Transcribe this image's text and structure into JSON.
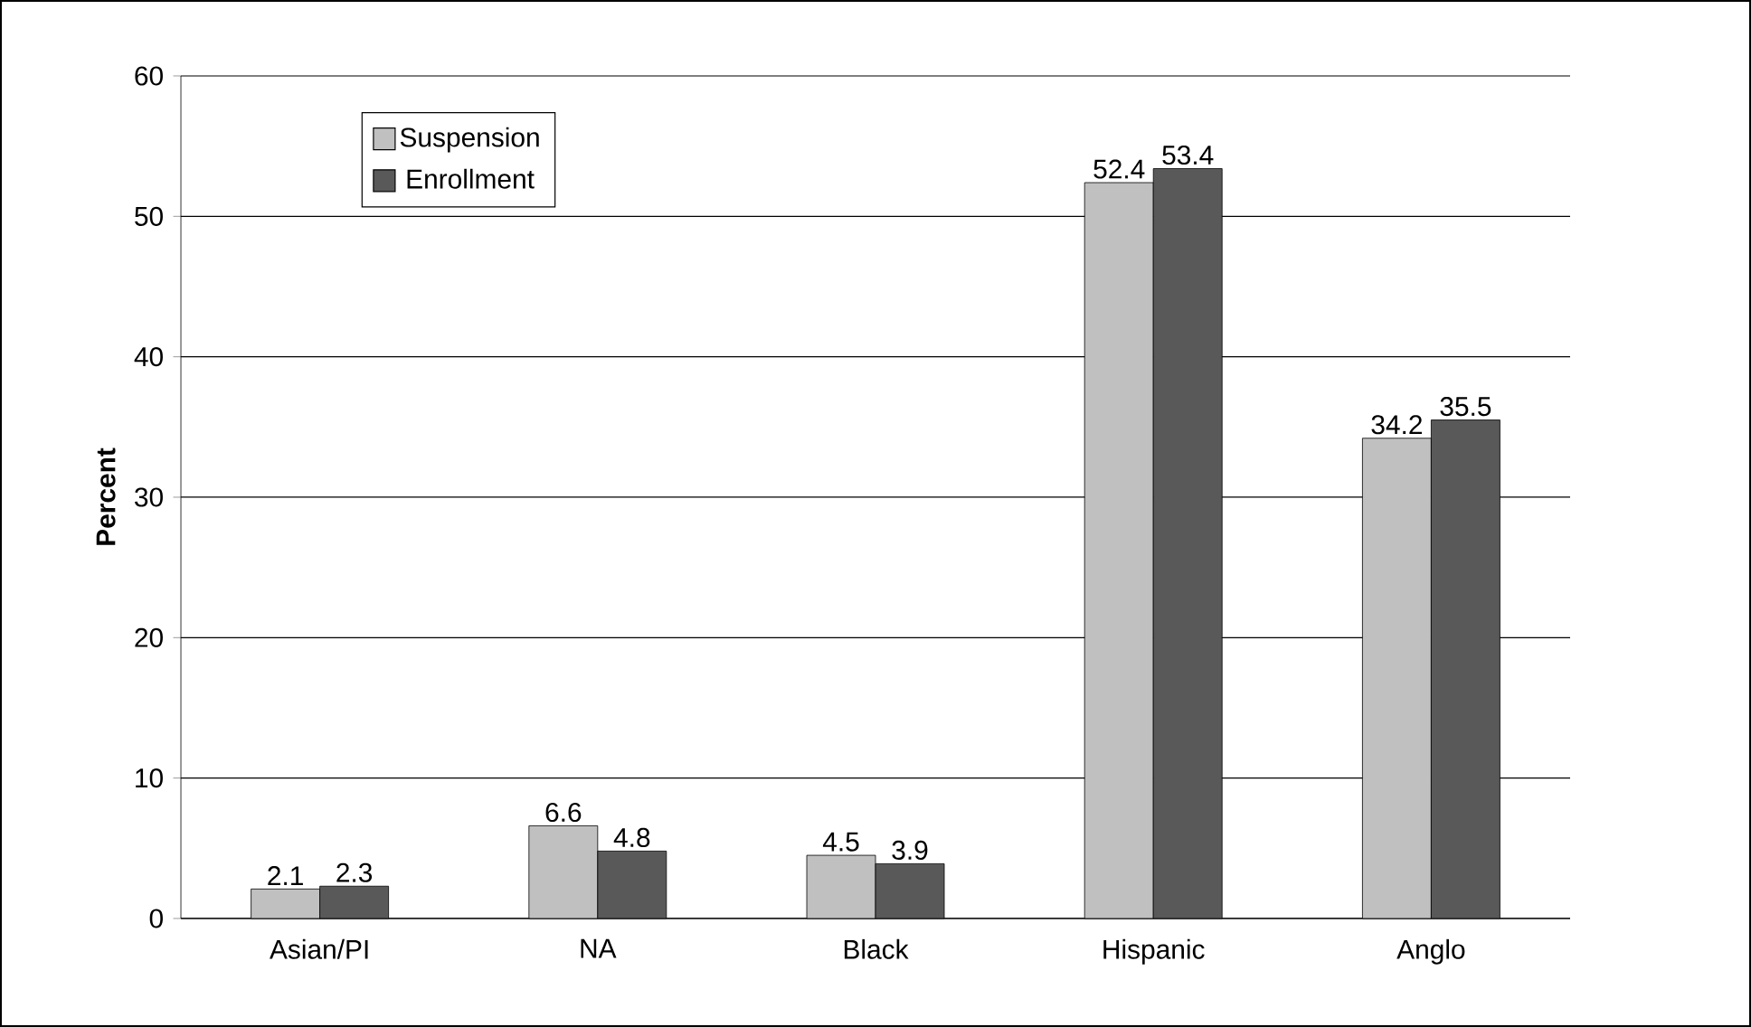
{
  "chart_data": {
    "type": "bar",
    "ylabel": "Percent",
    "categories": [
      "Asian/PI",
      "NA",
      "Black",
      "Hispanic",
      "Anglo"
    ],
    "series": [
      {
        "name": "Suspension",
        "color": "#c0c0c0",
        "values": [
          2.1,
          6.6,
          4.5,
          52.4,
          34.2
        ]
      },
      {
        "name": "Enrollment",
        "color": "#595959",
        "values": [
          2.3,
          4.8,
          3.9,
          53.4,
          35.5
        ]
      }
    ],
    "ylim": [
      0,
      60
    ],
    "yticks": [
      0,
      10,
      20,
      30,
      40,
      50,
      60
    ],
    "grid": "y",
    "legend": "top left",
    "data_labels": true
  }
}
